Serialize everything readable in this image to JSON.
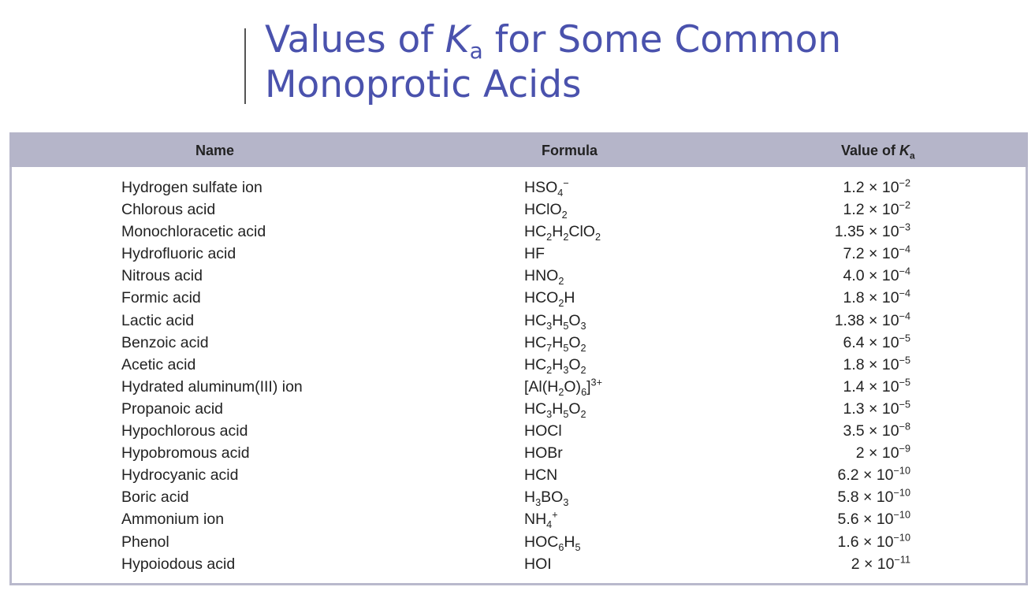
{
  "title": {
    "line1_pre": "Values of ",
    "K": "K",
    "a": "a",
    "line1_post": " for Some Common",
    "line2": "Monoprotic Acids"
  },
  "header": {
    "name": "Name",
    "formula": "Formula",
    "value_pre": "Value of ",
    "value_K": "K",
    "value_a": "a"
  },
  "rows": [
    {
      "name": "Hydrogen sulfate ion",
      "formula": [
        [
          "HSO",
          ""
        ],
        [
          "4",
          "sub"
        ],
        [
          "−",
          "sup"
        ]
      ],
      "mantissa": "1.2",
      "exponent": "−2"
    },
    {
      "name": "Chlorous acid",
      "formula": [
        [
          "HClO",
          ""
        ],
        [
          "2",
          "sub"
        ]
      ],
      "mantissa": "1.2",
      "exponent": "−2"
    },
    {
      "name": "Monochloracetic acid",
      "formula": [
        [
          "HC",
          ""
        ],
        [
          "2",
          "sub"
        ],
        [
          "H",
          ""
        ],
        [
          "2",
          "sub"
        ],
        [
          "ClO",
          ""
        ],
        [
          "2",
          "sub"
        ]
      ],
      "mantissa": "1.35",
      "exponent": "−3"
    },
    {
      "name": "Hydrofluoric acid",
      "formula": [
        [
          "HF",
          ""
        ]
      ],
      "mantissa": "7.2",
      "exponent": "−4"
    },
    {
      "name": "Nitrous acid",
      "formula": [
        [
          "HNO",
          ""
        ],
        [
          "2",
          "sub"
        ]
      ],
      "mantissa": "4.0",
      "exponent": "−4"
    },
    {
      "name": "Formic acid",
      "formula": [
        [
          "HCO",
          ""
        ],
        [
          "2",
          "sub"
        ],
        [
          "H",
          ""
        ]
      ],
      "mantissa": "1.8",
      "exponent": "−4"
    },
    {
      "name": "Lactic acid",
      "formula": [
        [
          "HC",
          ""
        ],
        [
          "3",
          "sub"
        ],
        [
          "H",
          ""
        ],
        [
          "5",
          "sub"
        ],
        [
          "O",
          ""
        ],
        [
          "3",
          "sub"
        ]
      ],
      "mantissa": "1.38",
      "exponent": "−4"
    },
    {
      "name": "Benzoic acid",
      "formula": [
        [
          "HC",
          ""
        ],
        [
          "7",
          "sub"
        ],
        [
          "H",
          ""
        ],
        [
          "5",
          "sub"
        ],
        [
          "O",
          ""
        ],
        [
          "2",
          "sub"
        ]
      ],
      "mantissa": "6.4",
      "exponent": "−5"
    },
    {
      "name": "Acetic acid",
      "formula": [
        [
          "HC",
          ""
        ],
        [
          "2",
          "sub"
        ],
        [
          "H",
          ""
        ],
        [
          "3",
          "sub"
        ],
        [
          "O",
          ""
        ],
        [
          "2",
          "sub"
        ]
      ],
      "mantissa": "1.8",
      "exponent": "−5"
    },
    {
      "name": "Hydrated aluminum(III) ion",
      "formula": [
        [
          "[Al(H",
          ""
        ],
        [
          "2",
          "sub"
        ],
        [
          "O)",
          ""
        ],
        [
          "6",
          "sub"
        ],
        [
          "]",
          ""
        ],
        [
          "3+",
          "sup"
        ]
      ],
      "mantissa": "1.4",
      "exponent": "−5"
    },
    {
      "name": "Propanoic acid",
      "formula": [
        [
          "HC",
          ""
        ],
        [
          "3",
          "sub"
        ],
        [
          "H",
          ""
        ],
        [
          "5",
          "sub"
        ],
        [
          "O",
          ""
        ],
        [
          "2",
          "sub"
        ]
      ],
      "mantissa": "1.3",
      "exponent": "−5"
    },
    {
      "name": "Hypochlorous acid",
      "formula": [
        [
          "HOCl",
          ""
        ]
      ],
      "mantissa": "3.5",
      "exponent": "−8"
    },
    {
      "name": "Hypobromous acid",
      "formula": [
        [
          "HOBr",
          ""
        ]
      ],
      "mantissa": "2",
      "exponent": "−9"
    },
    {
      "name": "Hydrocyanic acid",
      "formula": [
        [
          "HCN",
          ""
        ]
      ],
      "mantissa": "6.2",
      "exponent": "−10"
    },
    {
      "name": "Boric acid",
      "formula": [
        [
          "H",
          ""
        ],
        [
          "3",
          "sub"
        ],
        [
          "BO",
          ""
        ],
        [
          "3",
          "sub"
        ]
      ],
      "mantissa": "5.8",
      "exponent": "−10"
    },
    {
      "name": "Ammonium ion",
      "formula": [
        [
          "NH",
          ""
        ],
        [
          "4",
          "sub"
        ],
        [
          "+",
          "sup"
        ]
      ],
      "mantissa": "5.6",
      "exponent": "−10"
    },
    {
      "name": "Phenol",
      "formula": [
        [
          "HOC",
          ""
        ],
        [
          "6",
          "sub"
        ],
        [
          "H",
          ""
        ],
        [
          "5",
          "sub"
        ]
      ],
      "mantissa": "1.6",
      "exponent": "−10"
    },
    {
      "name": "Hypoiodous acid",
      "formula": [
        [
          "HOI",
          ""
        ]
      ],
      "mantissa": "2",
      "exponent": "−11"
    }
  ],
  "times": " × 10",
  "colors": {
    "title": "#4a52ad",
    "header_bg": "#b5b5c9",
    "border": "#b9b9cc"
  }
}
